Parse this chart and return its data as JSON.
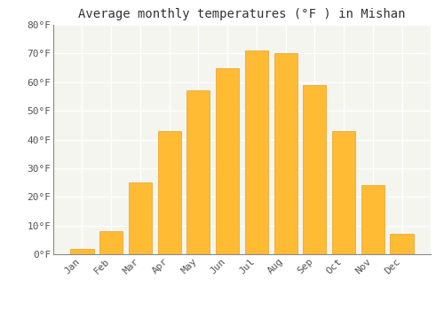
{
  "title": "Average monthly temperatures (°F ) in Mishan",
  "months": [
    "Jan",
    "Feb",
    "Mar",
    "Apr",
    "May",
    "Jun",
    "Jul",
    "Aug",
    "Sep",
    "Oct",
    "Nov",
    "Dec"
  ],
  "values": [
    2,
    8,
    25,
    43,
    57,
    65,
    71,
    70,
    59,
    43,
    24,
    7
  ],
  "bar_color": "#FFBB33",
  "bar_edge_color": "#E8A020",
  "ylim": [
    0,
    80
  ],
  "yticks": [
    0,
    10,
    20,
    30,
    40,
    50,
    60,
    70,
    80
  ],
  "ytick_labels": [
    "0°F",
    "10°F",
    "20°F",
    "30°F",
    "40°F",
    "50°F",
    "60°F",
    "70°F",
    "80°F"
  ],
  "background_color": "#ffffff",
  "plot_bg_color": "#f5f5f0",
  "grid_color": "#ffffff",
  "title_fontsize": 10,
  "tick_fontsize": 8,
  "figsize": [
    5.0,
    3.5
  ],
  "dpi": 100
}
